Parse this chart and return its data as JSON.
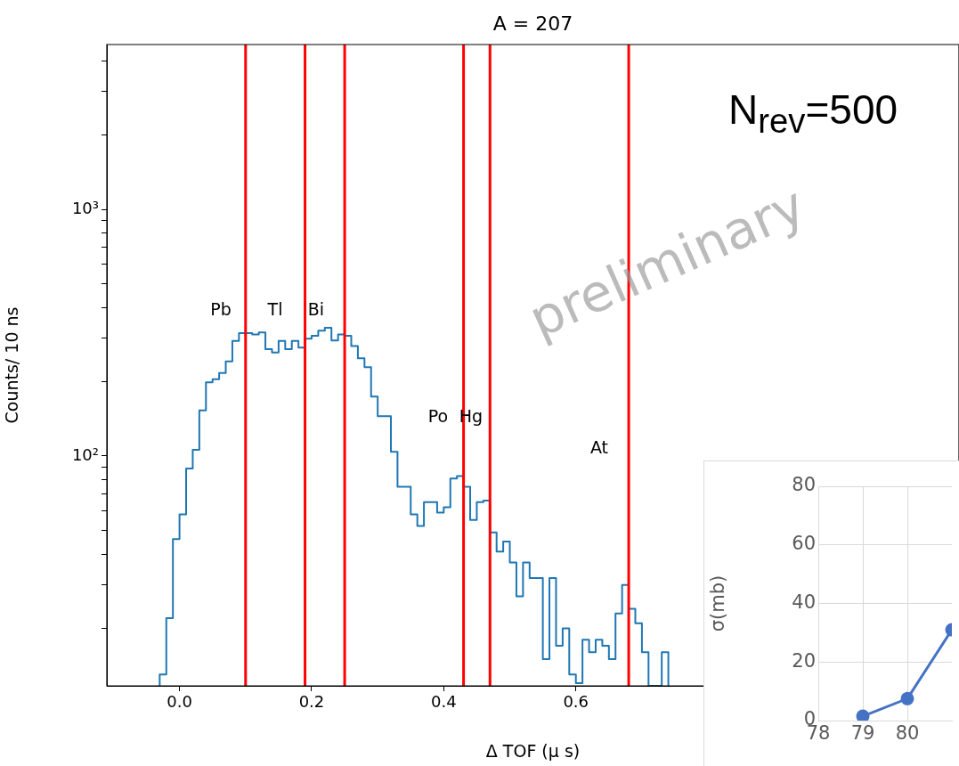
{
  "chart_data": [
    {
      "type": "histogram",
      "title": "A = 207",
      "xlabel": "Δ TOF (μ s)",
      "ylabel": "Counts/ 10 ns",
      "color": "#1f77b4",
      "bins": [
        -0.03,
        -0.02,
        -0.01,
        0.0,
        0.01,
        0.02,
        0.03,
        0.04,
        0.05,
        0.06,
        0.07,
        0.08,
        0.09,
        0.1,
        0.11,
        0.12,
        0.13,
        0.14,
        0.15,
        0.16,
        0.17,
        0.18,
        0.19,
        0.2,
        0.21,
        0.22,
        0.23,
        0.24,
        0.25,
        0.26,
        0.27,
        0.28,
        0.29,
        0.3,
        0.31,
        0.32,
        0.33,
        0.34,
        0.35,
        0.36,
        0.37,
        0.38,
        0.39,
        0.4,
        0.41,
        0.42,
        0.43,
        0.44,
        0.45,
        0.46,
        0.47,
        0.48,
        0.49,
        0.5,
        0.51,
        0.52,
        0.53,
        0.54,
        0.55,
        0.56,
        0.57,
        0.58,
        0.59,
        0.6,
        0.61,
        0.62,
        0.63,
        0.64,
        0.65,
        0.66,
        0.67,
        0.68,
        0.69,
        0.7,
        0.71,
        0.72,
        0.73,
        0.74
      ],
      "values": [
        13,
        22,
        46,
        58,
        89,
        106,
        153,
        199,
        205,
        217,
        242,
        293,
        315,
        315,
        311,
        317,
        271,
        263,
        293,
        271,
        293,
        275,
        299,
        307,
        322,
        331,
        294,
        311,
        307,
        279,
        249,
        229,
        174,
        145,
        145,
        104,
        75,
        75,
        58,
        52,
        65,
        65,
        59,
        62,
        81,
        83,
        75,
        55,
        65,
        66,
        49,
        41,
        45,
        37,
        27,
        37,
        32,
        32,
        15,
        32,
        17,
        20,
        13,
        12,
        18,
        16,
        18,
        17,
        15,
        23,
        30,
        24,
        21,
        16,
        null,
        null,
        16
      ],
      "xlim": [
        -0.11,
        1.18
      ],
      "xticks": [
        {
          "value": 0,
          "label": "0.0"
        },
        {
          "value": 0.2,
          "label": "0.2"
        },
        {
          "value": 0.4,
          "label": "0.4"
        },
        {
          "value": 0.6,
          "label": "0.6"
        }
      ],
      "ylim": [
        11.7,
        4660
      ],
      "yticks": [
        {
          "value": 20,
          "label": null
        },
        {
          "value": 30,
          "label": null
        },
        {
          "value": 40,
          "label": null
        },
        {
          "value": 50,
          "label": null
        },
        {
          "value": 60,
          "label": null
        },
        {
          "value": 70,
          "label": null
        },
        {
          "value": 80,
          "label": null
        },
        {
          "value": 90,
          "label": null
        },
        {
          "value": 100,
          "label": "10²"
        },
        {
          "value": 200,
          "label": null
        },
        {
          "value": 300,
          "label": null
        },
        {
          "value": 400,
          "label": null
        },
        {
          "value": 500,
          "label": null
        },
        {
          "value": 600,
          "label": null
        },
        {
          "value": 700,
          "label": null
        },
        {
          "value": 800,
          "label": null
        },
        {
          "value": 900,
          "label": null
        },
        {
          "value": 1000,
          "label": "10³"
        },
        {
          "value": 2000,
          "label": null
        },
        {
          "value": 3000,
          "label": null
        },
        {
          "value": 4000,
          "label": null
        }
      ],
      "log": "y",
      "grid": false,
      "legend": false,
      "ref_lines": [
        {
          "axis": "x",
          "value": 0.1,
          "color": "#ff0000"
        },
        {
          "axis": "x",
          "value": 0.19,
          "color": "#ff0000"
        },
        {
          "axis": "x",
          "value": 0.25,
          "color": "#ff0000"
        },
        {
          "axis": "x",
          "value": 0.43,
          "color": "#ff0000"
        },
        {
          "axis": "x",
          "value": 0.47,
          "color": "#ff0000"
        },
        {
          "axis": "x",
          "value": 0.68,
          "color": "#ff0000"
        }
      ],
      "annotations": [
        "Pb",
        "Tl",
        "Bi",
        "Po",
        "Hg",
        "At",
        "N$_{rev}$=500",
        "preliminary"
      ]
    },
    {
      "type": "line",
      "ylabel": "σ(mb)",
      "x": [
        79,
        80,
        81
      ],
      "values": [
        1.5,
        7.5,
        31
      ],
      "color": "#4472c4",
      "xlim": [
        78,
        81
      ],
      "xticks": [
        78,
        79,
        80
      ],
      "ylim": [
        0,
        80
      ],
      "yticks": [
        0,
        20,
        40,
        60,
        80
      ],
      "grid": true,
      "marker": "circle",
      "legend": false
    }
  ]
}
